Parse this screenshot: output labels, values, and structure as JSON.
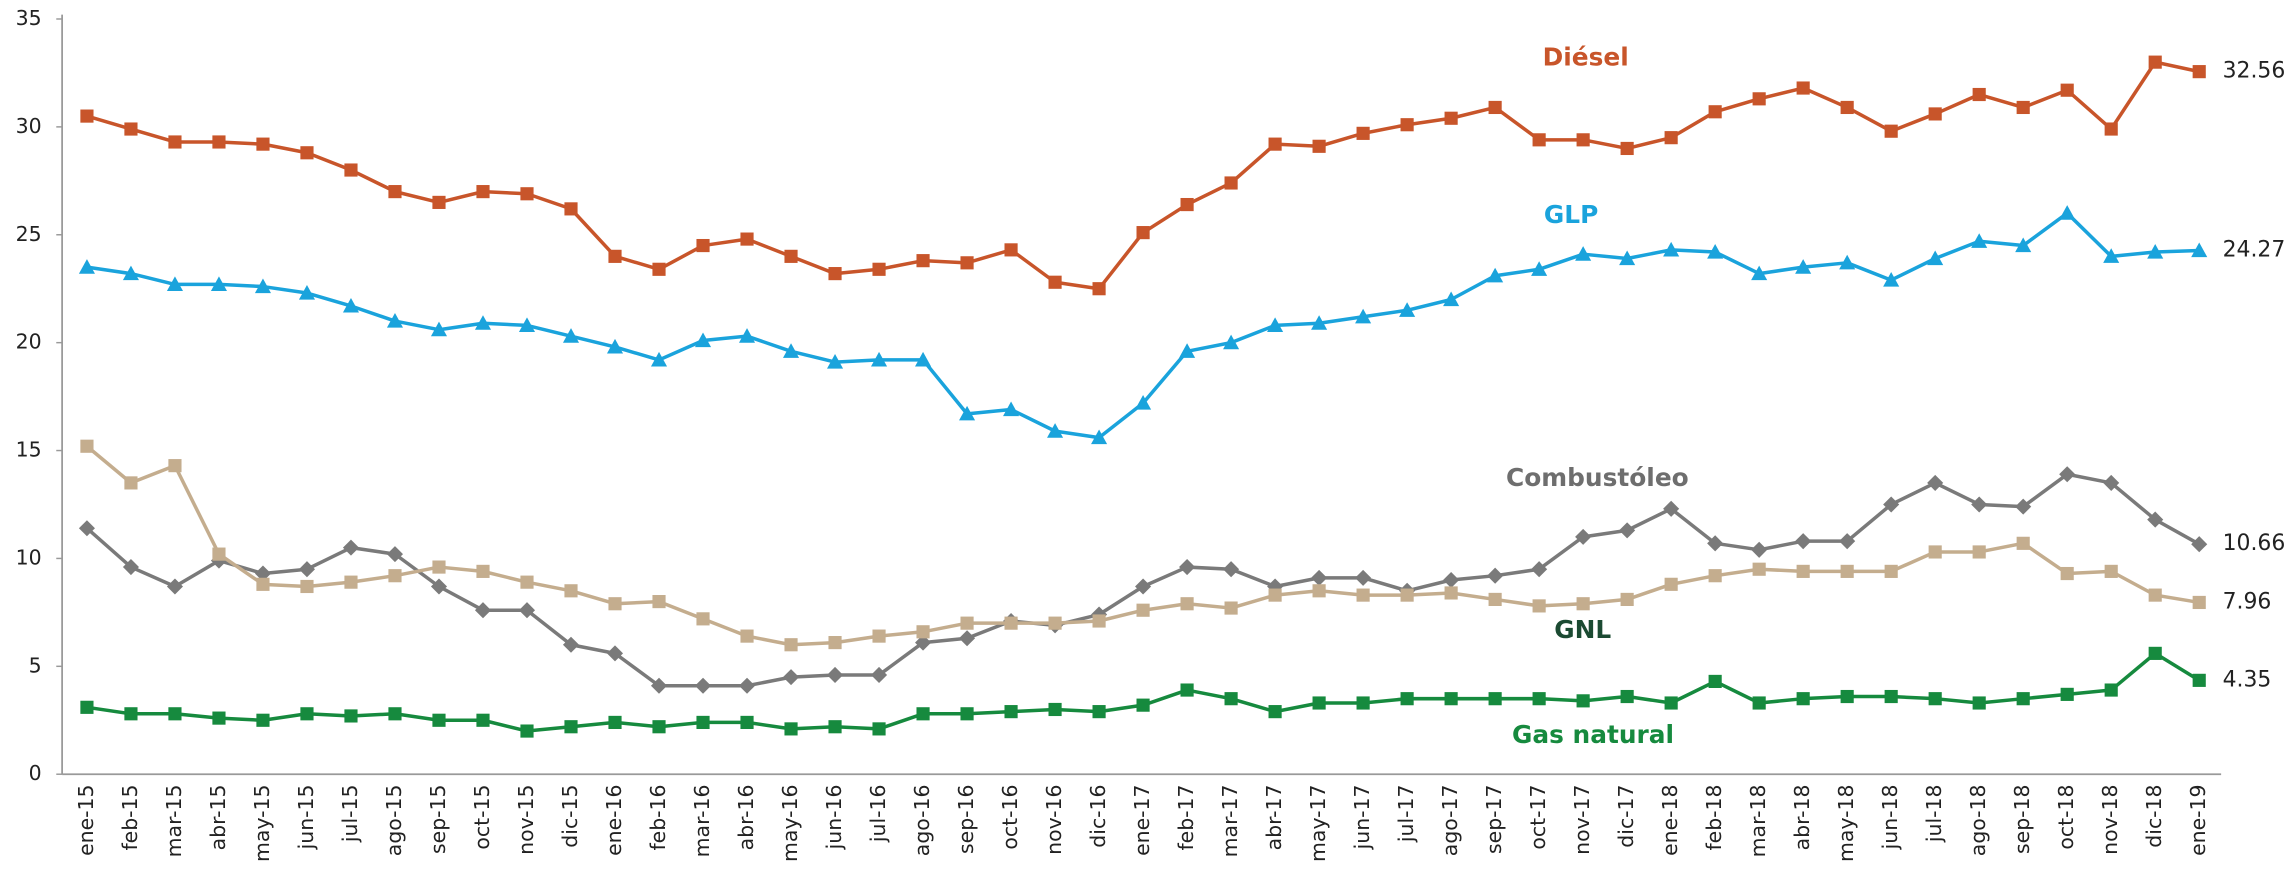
{
  "chart_data": {
    "type": "line",
    "categories": [
      "ene-15",
      "feb-15",
      "mar-15",
      "abr-15",
      "may-15",
      "jun-15",
      "jul-15",
      "ago-15",
      "sep-15",
      "oct-15",
      "nov-15",
      "dic-15",
      "ene-16",
      "feb-16",
      "mar-16",
      "abr-16",
      "may-16",
      "jun-16",
      "jul-16",
      "ago-16",
      "sep-16",
      "oct-16",
      "nov-16",
      "dic-16",
      "ene-17",
      "feb-17",
      "mar-17",
      "abr-17",
      "may-17",
      "jun-17",
      "jul-17",
      "ago-17",
      "sep-17",
      "oct-17",
      "nov-17",
      "dic-17",
      "ene-18",
      "feb-18",
      "mar-18",
      "abr-18",
      "may-18",
      "jun-18",
      "jul-18",
      "ago-18",
      "sep-18",
      "oct-18",
      "nov-18",
      "dic-18",
      "ene-19"
    ],
    "ylim": [
      0,
      35
    ],
    "yticks": [
      0,
      5,
      10,
      15,
      20,
      25,
      30,
      35
    ],
    "grid": false,
    "series": [
      {
        "name": "Diésel",
        "color": "#c8552a",
        "label_color": "#c8552a",
        "marker": "square",
        "values": [
          30.5,
          29.9,
          29.3,
          29.3,
          29.2,
          28.8,
          28.0,
          27.0,
          26.5,
          27.0,
          26.9,
          26.2,
          24.0,
          23.4,
          24.5,
          24.8,
          24.0,
          23.2,
          23.4,
          23.8,
          23.7,
          24.3,
          22.8,
          22.5,
          25.1,
          26.4,
          27.4,
          29.2,
          29.1,
          29.7,
          30.1,
          30.4,
          30.9,
          29.4,
          29.4,
          29.0,
          29.5,
          30.7,
          31.3,
          31.8,
          30.9,
          29.8,
          30.6,
          31.5,
          30.9,
          31.7,
          29.9,
          33.0,
          32.56
        ]
      },
      {
        "name": "GLP",
        "color": "#1aa3dc",
        "label_color": "#1aa3dc",
        "marker": "triangle",
        "values": [
          23.5,
          23.2,
          22.7,
          22.7,
          22.6,
          22.3,
          21.7,
          21.0,
          20.6,
          20.9,
          20.8,
          20.3,
          19.8,
          19.2,
          20.1,
          20.3,
          19.6,
          19.1,
          19.2,
          19.2,
          16.7,
          16.9,
          15.9,
          15.6,
          17.2,
          19.6,
          20.0,
          20.8,
          20.9,
          21.2,
          21.5,
          22.0,
          23.1,
          23.4,
          24.1,
          23.9,
          24.3,
          24.2,
          23.2,
          23.5,
          23.7,
          22.9,
          23.9,
          24.7,
          24.5,
          26.0,
          24.0,
          24.2,
          24.27
        ]
      },
      {
        "name": "Combustóleo",
        "color": "#7a7a7a",
        "label_color": "#6e6e6e",
        "marker": "diamond",
        "values": [
          11.4,
          9.6,
          8.7,
          9.9,
          9.3,
          9.5,
          10.5,
          10.2,
          8.7,
          7.6,
          7.6,
          6.0,
          5.6,
          4.1,
          4.1,
          4.1,
          4.5,
          4.6,
          4.6,
          6.1,
          6.3,
          7.1,
          6.9,
          7.4,
          8.7,
          9.6,
          9.5,
          8.7,
          9.1,
          9.1,
          8.5,
          9.0,
          9.2,
          9.5,
          11.0,
          11.3,
          12.3,
          10.7,
          10.4,
          10.8,
          10.8,
          12.5,
          13.5,
          12.5,
          12.4,
          13.9,
          13.5,
          11.8,
          10.66
        ]
      },
      {
        "name": "GNL",
        "color": "#c4ad8e",
        "label_color": "#1b4a32",
        "marker": "square",
        "values": [
          15.2,
          13.5,
          14.3,
          10.2,
          8.8,
          8.7,
          8.9,
          9.2,
          9.6,
          9.4,
          8.9,
          8.5,
          7.9,
          8.0,
          7.2,
          6.4,
          6.0,
          6.1,
          6.4,
          6.6,
          7.0,
          7.0,
          7.0,
          7.1,
          7.6,
          7.9,
          7.7,
          8.3,
          8.5,
          8.3,
          8.3,
          8.4,
          8.1,
          7.8,
          7.9,
          8.1,
          8.8,
          9.2,
          9.5,
          9.4,
          9.4,
          9.4,
          10.3,
          10.3,
          10.7,
          9.3,
          9.4,
          8.3,
          7.96
        ]
      },
      {
        "name": "Gas natural",
        "color": "#168a3e",
        "label_color": "#168a3e",
        "marker": "square",
        "values": [
          3.1,
          2.8,
          2.8,
          2.6,
          2.5,
          2.8,
          2.7,
          2.8,
          2.5,
          2.5,
          2.0,
          2.2,
          2.4,
          2.2,
          2.4,
          2.4,
          2.1,
          2.2,
          2.1,
          2.8,
          2.8,
          2.9,
          3.0,
          2.9,
          3.2,
          3.9,
          3.5,
          2.9,
          3.3,
          3.3,
          3.5,
          3.5,
          3.5,
          3.5,
          3.4,
          3.6,
          3.3,
          4.3,
          3.3,
          3.5,
          3.6,
          3.6,
          3.5,
          3.3,
          3.5,
          3.7,
          3.9,
          5.6,
          4.35
        ]
      }
    ]
  }
}
